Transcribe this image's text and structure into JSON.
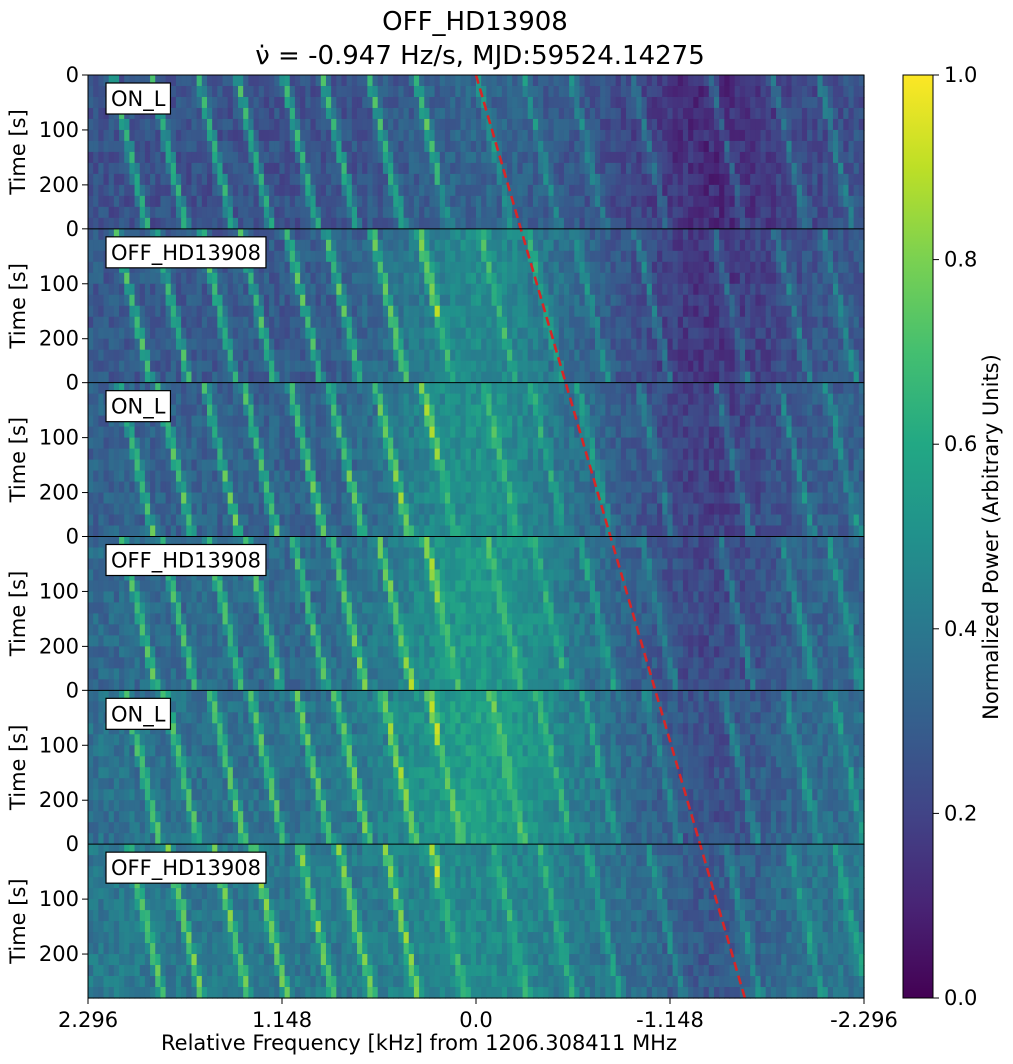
{
  "title_line1": "OFF_HD13908",
  "title_line2": "ν̇ = -0.947 Hz/s, MJD:59524.14275",
  "chart_data": {
    "type": "heatmap",
    "title": "OFF_HD13908 ν̇ = -0.947 Hz/s, MJD:59524.14275",
    "xlabel": "Relative Frequency [kHz] from 1206.308411 MHz",
    "ylabel": "Time [s]",
    "xlim": [
      2.296,
      -2.296
    ],
    "x_ticks": [
      "2.296",
      "1.148",
      "0.0",
      "-1.148",
      "-2.296"
    ],
    "y_ticks": [
      "0",
      "100",
      "200"
    ],
    "last_panel_y_ticks": [
      "100",
      "200"
    ],
    "panel_time_range_s": [
      0,
      280
    ],
    "panels": [
      "ON_L",
      "OFF_HD13908",
      "ON_L",
      "OFF_HD13908",
      "ON_L",
      "OFF_HD13908"
    ],
    "drift_line": {
      "drift_rate_hz_per_s": -0.947,
      "start_freq_khz": 0.0,
      "style": "dashed",
      "color": "#d62728"
    },
    "colorbar": {
      "label": "Normalized Power (Arbitrary Units)",
      "range": [
        0.0,
        1.0
      ],
      "ticks": [
        "0.0",
        "0.2",
        "0.4",
        "0.6",
        "0.8",
        "1.0"
      ],
      "colormap": "viridis"
    }
  }
}
